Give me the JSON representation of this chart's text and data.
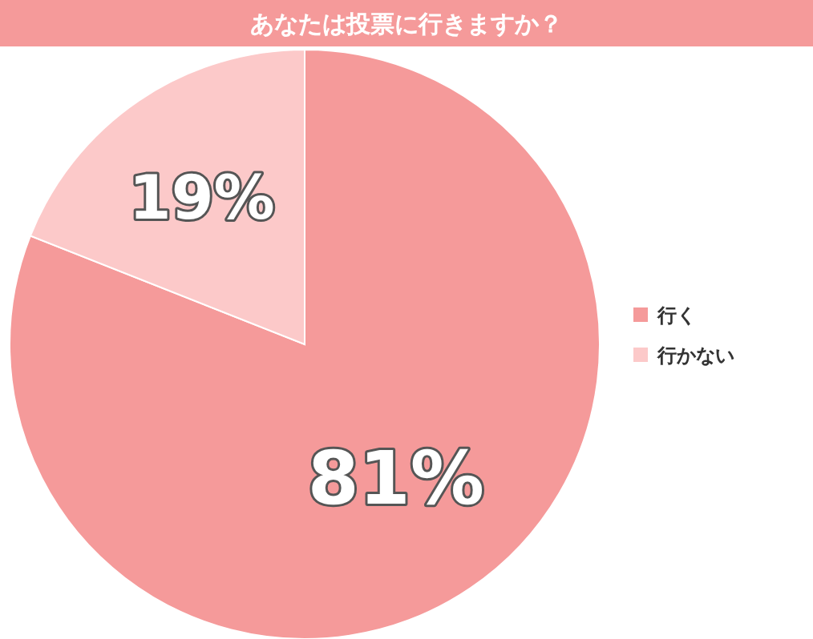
{
  "chart_data": {
    "type": "pie",
    "title": "あなたは投票に行きますか？",
    "categories": [
      "行く",
      "行かない"
    ],
    "values": [
      81,
      19
    ],
    "value_labels": [
      "81%",
      "19%"
    ],
    "colors": [
      "#f59a9a",
      "#fcc9c9"
    ],
    "legend": "right"
  }
}
